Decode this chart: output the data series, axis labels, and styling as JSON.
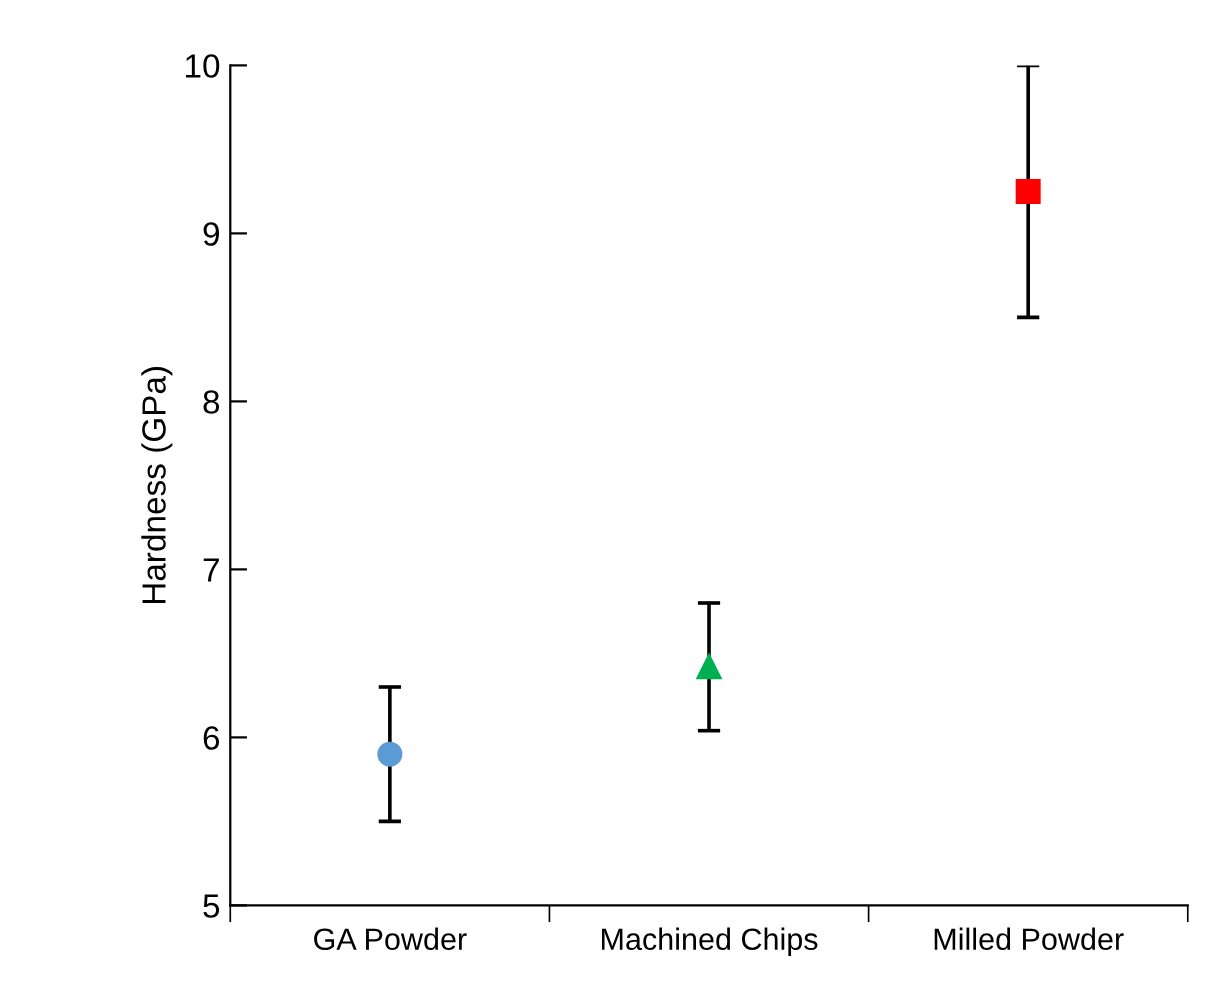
{
  "chart_data": {
    "type": "scatter",
    "ylabel": "Hardness (GPa)",
    "categories": [
      "GA Powder",
      "Machined Chips",
      "Milled Powder"
    ],
    "series": [
      {
        "color": "#5b9bd5",
        "marker": "circle",
        "values": [
          5.9,
          null,
          null
        ],
        "errors": [
          0.4,
          null,
          null
        ]
      },
      {
        "color": "#00b050",
        "marker": "triangle",
        "values": [
          null,
          6.42,
          null
        ],
        "errors": [
          null,
          0.38,
          null
        ]
      },
      {
        "color": "#ff0000",
        "marker": "square",
        "values": [
          null,
          null,
          9.25
        ],
        "errors": [
          null,
          null,
          0.75
        ]
      }
    ],
    "ylim": [
      5,
      10
    ],
    "yticks": [
      5,
      6,
      7,
      8,
      9,
      10
    ],
    "grid": false,
    "legend": false
  }
}
